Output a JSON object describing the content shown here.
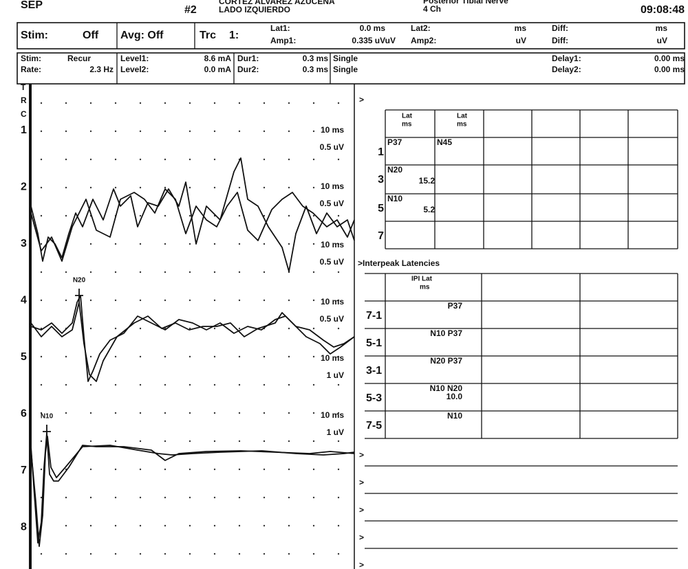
{
  "header": {
    "test": "SEP",
    "trace_no": "#2",
    "patient": "CORTEZ ALVAREZ AZUCENA",
    "side": "LADO IZQUIERDO",
    "nerve": "Posterior Tibial Nerve",
    "channels": "4 Ch",
    "time": "09:08:48"
  },
  "settings": {
    "row1": [
      "Stim:",
      "Off",
      "Avg: Off",
      "Trc",
      "1:",
      "Lat1:",
      "0.0 ms",
      "Amp1:",
      "0.335 uVuV",
      "Lat2:",
      "ms",
      "Amp2:",
      "uV",
      "Diff:",
      "ms",
      "Diff:",
      "uV"
    ],
    "row2": [
      "Stim:",
      "Recur",
      "Rate:",
      "2.3 Hz",
      "Level1:",
      "8.6 mA",
      "Level2:",
      "0.0 mA",
      "Dur1:",
      "0.3 ms",
      "Single",
      "Dur2:",
      "0.3 ms",
      "Single",
      "Delay1:",
      "0.00 ms",
      "Delay2:",
      "0.00 ms"
    ]
  },
  "waveforms": {
    "side_labels": [
      "T",
      "R",
      "C"
    ],
    "channels": [
      "1",
      "2",
      "3",
      "4",
      "5",
      "6",
      "7",
      "8"
    ],
    "scales": [
      [
        "10 ms",
        "0.5 uV"
      ],
      [
        "10 ms",
        "0.5 uV"
      ],
      [
        "10 ms",
        "0.5 uV"
      ],
      [
        "10 ms",
        "0.5 uV"
      ],
      [
        "10 ms",
        "1 uV"
      ],
      [
        "10 ms",
        "1 uV"
      ]
    ],
    "markers": [
      "N20",
      "N10"
    ]
  },
  "latency_table": {
    "prompt": ">",
    "headers": [
      [
        "Lat",
        "ms"
      ],
      [
        "Lat",
        "ms"
      ]
    ],
    "rows": [
      {
        "label": "1",
        "cells": [
          "P37",
          "N45"
        ]
      },
      {
        "label": "3",
        "cells": [
          "N20",
          "15.2"
        ]
      },
      {
        "label": "5",
        "cells": [
          "N10",
          "5.2"
        ]
      },
      {
        "label": "7",
        "cells": []
      }
    ]
  },
  "interpeak_table": {
    "title": ">Interpeak Latencies",
    "headers": [
      "IPI Lat",
      "ms"
    ],
    "rows": [
      {
        "label": "7-1",
        "cells": [
          "P37"
        ]
      },
      {
        "label": "5-1",
        "cells": [
          "N10 P37"
        ]
      },
      {
        "label": "3-1",
        "cells": [
          "N20 P37"
        ]
      },
      {
        "label": "5-3",
        "cells": [
          "N10 N20",
          "10.0"
        ]
      },
      {
        "label": "7-5",
        "cells": [
          "N10"
        ]
      }
    ]
  },
  "prompts": [
    ">",
    ">",
    ">",
    ">",
    ">"
  ]
}
